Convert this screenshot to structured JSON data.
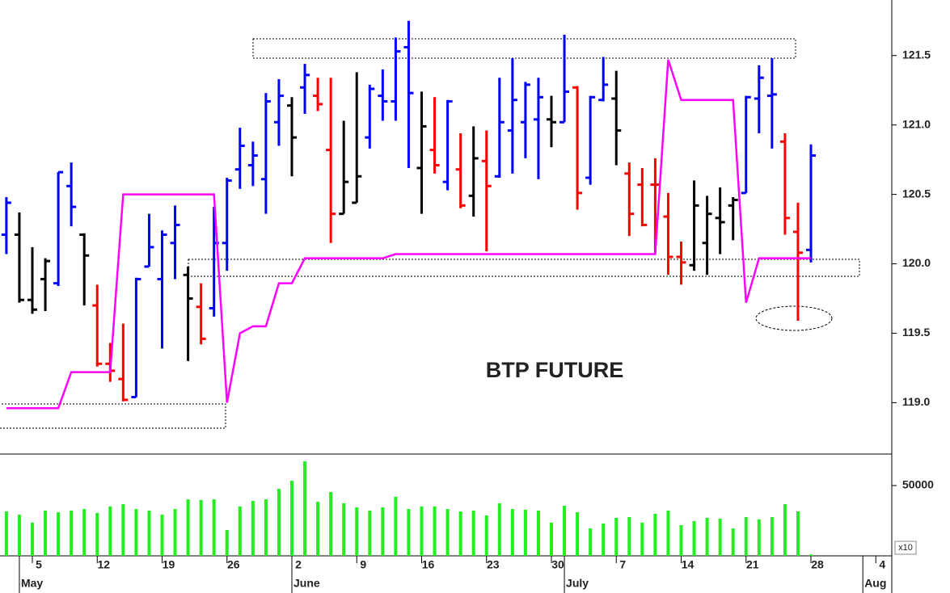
{
  "chart_data": [
    {
      "type": "ohlc",
      "annotation": "BTP FUTURE",
      "categories": [
        null,
        null,
        "5",
        null,
        null,
        null,
        null,
        "12",
        null,
        null,
        null,
        null,
        "19",
        null,
        null,
        null,
        null,
        "26",
        null,
        null,
        null,
        null,
        "2",
        null,
        null,
        null,
        null,
        "9",
        null,
        null,
        null,
        null,
        "16",
        null,
        null,
        null,
        null,
        "23",
        null,
        null,
        null,
        null,
        "30",
        null,
        null,
        null,
        null,
        "7",
        null,
        null,
        null,
        null,
        "14",
        null,
        null,
        null,
        null,
        "21",
        null,
        null,
        null,
        null,
        "28",
        null,
        null,
        null,
        null,
        "4"
      ],
      "month_categories": [
        null,
        "May",
        null,
        null,
        null,
        null,
        null,
        null,
        null,
        null,
        null,
        null,
        null,
        null,
        null,
        null,
        null,
        null,
        null,
        null,
        null,
        null,
        "June",
        null,
        null,
        null,
        null,
        null,
        null,
        null,
        null,
        null,
        null,
        null,
        null,
        null,
        null,
        null,
        null,
        null,
        null,
        null,
        null,
        "July",
        null,
        null,
        null,
        null,
        null,
        null,
        null,
        null,
        null,
        null,
        null,
        null,
        null,
        null,
        null,
        null,
        null,
        null,
        null,
        null,
        null,
        null,
        "Aug",
        null
      ],
      "open": [
        120.21,
        120.21,
        119.74,
        119.89,
        119.86,
        120.56,
        120.21,
        119.7,
        119.28,
        119.17,
        119.04,
        119.98,
        119.89,
        120.15,
        119.92,
        119.69,
        119.68,
        120.15,
        120.68,
        120.71,
        120.61,
        121.02,
        121.14,
        121.27,
        121.21,
        120.82,
        120.36,
        120.44,
        120.91,
        121.21,
        121.17,
        121.56,
        120.69,
        120.82,
        120.59,
        120.68,
        120.49,
        120.74,
        120.63,
        120.96,
        121.02,
        121.04,
        121.04,
        121.02,
        121.27,
        120.62,
        121.18,
        121.19,
        120.65,
        120.57,
        120.57,
        120.34,
        120.05,
        119.99,
        120.15,
        120.33,
        120.42,
        120.51,
        121.19,
        121.21,
        120.88,
        120.23,
        120.1,
        null,
        null,
        null,
        null,
        null
      ],
      "high": [
        120.48,
        120.37,
        120.12,
        120.04,
        120.66,
        120.73,
        120.22,
        119.85,
        119.43,
        119.57,
        119.9,
        120.36,
        120.24,
        120.42,
        119.98,
        119.86,
        120.41,
        120.62,
        120.98,
        120.88,
        121.23,
        121.33,
        121.2,
        121.44,
        121.34,
        121.34,
        121.03,
        121.38,
        121.29,
        121.4,
        121.63,
        121.75,
        121.24,
        121.2,
        121.18,
        120.94,
        120.99,
        120.96,
        121.34,
        121.48,
        121.31,
        121.34,
        121.21,
        121.65,
        121.28,
        121.21,
        121.49,
        121.39,
        120.73,
        120.69,
        120.76,
        120.51,
        120.16,
        120.6,
        120.49,
        120.55,
        120.48,
        121.21,
        121.43,
        121.48,
        120.94,
        120.44,
        120.86,
        null,
        null,
        null,
        null,
        null
      ],
      "low": [
        120.07,
        119.72,
        119.64,
        119.66,
        119.84,
        120.27,
        119.7,
        119.26,
        119.15,
        119.01,
        119.04,
        119.98,
        119.39,
        119.89,
        119.3,
        119.42,
        119.62,
        119.95,
        120.54,
        120.56,
        120.36,
        120.85,
        120.63,
        121.08,
        121.1,
        120.15,
        120.36,
        120.44,
        120.83,
        121.03,
        121.03,
        120.69,
        120.36,
        120.65,
        120.53,
        120.4,
        120.34,
        120.09,
        120.62,
        120.65,
        120.76,
        120.61,
        120.84,
        121.02,
        120.39,
        120.57,
        121.17,
        120.71,
        120.2,
        120.27,
        120.08,
        119.92,
        119.85,
        119.95,
        119.92,
        120.07,
        120.17,
        120.51,
        120.94,
        120.83,
        120.21,
        119.59,
        120.01,
        null,
        null,
        null,
        null,
        null
      ],
      "close": [
        120.44,
        119.74,
        119.67,
        120.02,
        120.66,
        120.41,
        120.06,
        119.28,
        119.23,
        119.02,
        119.89,
        120.12,
        120.21,
        120.28,
        119.75,
        119.46,
        120.15,
        120.6,
        120.85,
        120.78,
        121.17,
        121.21,
        120.91,
        121.36,
        121.15,
        120.36,
        120.59,
        120.63,
        121.26,
        121.17,
        121.53,
        121.23,
        120.99,
        120.71,
        121.17,
        120.42,
        120.76,
        120.56,
        121.02,
        121.18,
        121.29,
        121.2,
        121.02,
        121.24,
        120.51,
        121.2,
        121.29,
        120.96,
        120.36,
        120.28,
        120.57,
        120.05,
        120.01,
        120.42,
        120.36,
        120.3,
        120.46,
        121.2,
        121.34,
        121.22,
        120.33,
        120.08,
        120.78,
        null,
        null,
        null,
        null,
        null
      ],
      "colors": [
        "#0000ff",
        "#000000",
        "#000000",
        "#000000",
        "#0000ff",
        "#0000ff",
        "#000000",
        "#ff0000",
        "#ff0000",
        "#ff0000",
        "#0000ff",
        "#0000ff",
        "#0000ff",
        "#0000ff",
        "#000000",
        "#ff0000",
        "#0000ff",
        "#0000ff",
        "#0000ff",
        "#0000ff",
        "#0000ff",
        "#0000ff",
        "#000000",
        "#0000ff",
        "#ff0000",
        "#ff0000",
        "#000000",
        "#000000",
        "#0000ff",
        "#0000ff",
        "#0000ff",
        "#0000ff",
        "#000000",
        "#ff0000",
        "#0000ff",
        "#ff0000",
        "#000000",
        "#ff0000",
        "#0000ff",
        "#0000ff",
        "#0000ff",
        "#0000ff",
        "#000000",
        "#0000ff",
        "#ff0000",
        "#0000ff",
        "#0000ff",
        "#000000",
        "#ff0000",
        "#ff0000",
        "#ff0000",
        "#ff0000",
        "#ff0000",
        "#000000",
        "#000000",
        "#000000",
        "#000000",
        "#0000ff",
        "#0000ff",
        "#0000ff",
        "#ff0000",
        "#ff0000",
        "#0000ff",
        null,
        null,
        null,
        null,
        null
      ],
      "stop": {
        "color": "#ff00ff",
        "values": [
          118.96,
          118.96,
          118.96,
          118.96,
          118.96,
          119.22,
          119.22,
          119.22,
          119.22,
          120.5,
          120.5,
          120.5,
          120.5,
          120.5,
          120.5,
          120.5,
          120.5,
          119.0,
          119.5,
          119.55,
          119.55,
          119.86,
          119.86,
          120.04,
          120.04,
          120.04,
          120.04,
          120.04,
          120.04,
          120.04,
          120.07,
          120.07,
          120.07,
          120.07,
          120.07,
          120.07,
          120.07,
          120.07,
          120.07,
          120.07,
          120.07,
          120.07,
          120.07,
          120.07,
          120.07,
          120.07,
          120.07,
          120.07,
          120.07,
          120.07,
          120.07,
          121.47,
          121.18,
          121.18,
          121.18,
          121.18,
          121.18,
          119.72,
          120.04,
          120.04,
          120.04,
          120.04,
          120.04,
          null,
          null,
          null,
          null,
          null
        ]
      },
      "ylim": [
        118.63,
        121.9
      ],
      "yticks": [
        {
          "value": 119,
          "label": "119.0"
        },
        {
          "value": 119.5,
          "label": "119.5"
        },
        {
          "value": 120,
          "label": "120.0"
        },
        {
          "value": 120.5,
          "label": "120.5"
        },
        {
          "value": 121,
          "label": "121.0"
        },
        {
          "value": 121.5,
          "label": "121.5"
        }
      ]
    },
    {
      "type": "bar",
      "values": [
        31600,
        29300,
        23600,
        32200,
        31000,
        32200,
        33300,
        30500,
        35100,
        36800,
        33300,
        32200,
        29300,
        33300,
        40200,
        39700,
        40200,
        18400,
        35100,
        39100,
        40200,
        47700,
        53400,
        67200,
        38500,
        45400,
        37400,
        34500,
        32200,
        34500,
        42000,
        33300,
        35100,
        35100,
        33300,
        31600,
        32200,
        28700,
        37400,
        33300,
        32800,
        32200,
        23600,
        35600,
        31000,
        19500,
        23000,
        27000,
        27600,
        23600,
        29900,
        32200,
        21800,
        24700,
        27000,
        26400,
        19500,
        27600,
        25900,
        27600,
        36800,
        31600,
        1000,
        null,
        null,
        null,
        null,
        null
      ],
      "color": "#22ee22",
      "ylim": [
        0,
        72400
      ],
      "yticks": [
        50000
      ],
      "scale_label": "x10"
    }
  ]
}
